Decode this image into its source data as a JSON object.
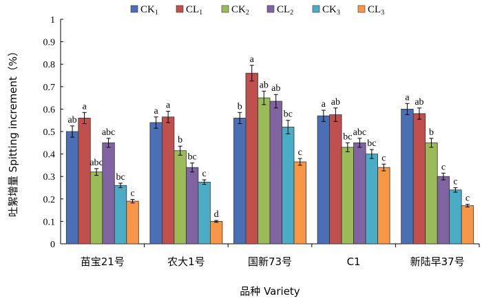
{
  "chart_data": {
    "type": "bar",
    "title": "",
    "xlabel": "品种 Variety",
    "ylabel": "吐絮增量 Spitting increment（%）",
    "ylim": [
      0,
      1
    ],
    "yticks": [
      "0",
      "0.1",
      "0.2",
      "0.3",
      "0.4",
      "0.5",
      "0.6",
      "0.7",
      "0.8",
      "0.9",
      "1"
    ],
    "grid": false,
    "legend_position": "top",
    "categories": [
      "苗宝21号",
      "农大1号",
      "国新73号",
      "C1",
      "新陆早37号"
    ],
    "series": [
      {
        "name": "CK",
        "sub": "1",
        "color": "#4a6fb5",
        "values": [
          0.5,
          0.54,
          0.56,
          0.57,
          0.6
        ],
        "errors": [
          0.025,
          0.025,
          0.025,
          0.025,
          0.025
        ],
        "labels": [
          "ab",
          "a",
          "b",
          "a",
          "a"
        ]
      },
      {
        "name": "CL",
        "sub": "1",
        "color": "#c0504d",
        "values": [
          0.56,
          0.565,
          0.76,
          0.575,
          0.58
        ],
        "errors": [
          0.025,
          0.025,
          0.035,
          0.03,
          0.025
        ],
        "labels": [
          "a",
          "a",
          "a",
          "ab",
          "ab"
        ]
      },
      {
        "name": "CK",
        "sub": "2",
        "color": "#9bbb59",
        "values": [
          0.32,
          0.415,
          0.65,
          0.43,
          0.45
        ],
        "errors": [
          0.015,
          0.02,
          0.03,
          0.02,
          0.02
        ],
        "labels": [
          "abc",
          "b",
          "ab",
          "bc",
          "b"
        ]
      },
      {
        "name": "CL",
        "sub": "2",
        "color": "#8064a2",
        "values": [
          0.45,
          0.34,
          0.635,
          0.45,
          0.3
        ],
        "errors": [
          0.02,
          0.02,
          0.03,
          0.02,
          0.015
        ],
        "labels": [
          "abc",
          "bc",
          "ab",
          "abc",
          "c"
        ]
      },
      {
        "name": "CK",
        "sub": "3",
        "color": "#4bacc6",
        "values": [
          0.26,
          0.275,
          0.52,
          0.4,
          0.24
        ],
        "errors": [
          0.01,
          0.01,
          0.03,
          0.02,
          0.01
        ],
        "labels": [
          "bc",
          "c",
          "bc",
          "bc",
          "c"
        ]
      },
      {
        "name": "CL",
        "sub": "3",
        "color": "#f79646",
        "values": [
          0.19,
          0.1,
          0.365,
          0.34,
          0.17
        ],
        "errors": [
          0.008,
          0.004,
          0.015,
          0.015,
          0.006
        ],
        "labels": [
          "c",
          "d",
          "c",
          "c",
          "c"
        ]
      }
    ]
  }
}
